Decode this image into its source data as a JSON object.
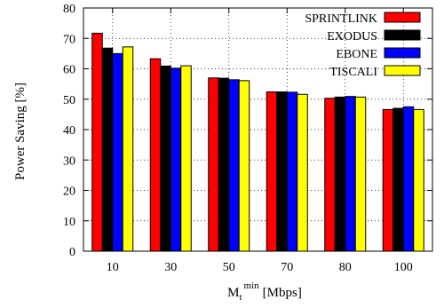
{
  "chart_data": {
    "type": "bar",
    "categories": [
      "10",
      "30",
      "50",
      "70",
      "80",
      "100"
    ],
    "series": [
      {
        "name": "SPRINTLINK",
        "color": "#ff0000",
        "values": [
          71.7,
          63.3,
          57.0,
          52.4,
          50.3,
          46.6
        ]
      },
      {
        "name": "EXODUS",
        "color": "#000000",
        "values": [
          66.8,
          60.9,
          56.9,
          52.4,
          50.7,
          47.0
        ]
      },
      {
        "name": "EBONE",
        "color": "#0000ff",
        "values": [
          65.0,
          60.2,
          56.4,
          52.3,
          50.9,
          47.5
        ]
      },
      {
        "name": "TISCALI",
        "color": "#ffff00",
        "values": [
          67.2,
          61.0,
          56.1,
          51.6,
          50.7,
          46.6
        ]
      }
    ],
    "ylabel": "Power Saving [%]",
    "xlabel_main": "M",
    "xlabel_sub": "t",
    "xlabel_sup": "min",
    "xlabel_unit": "[Mbps]",
    "ylim": [
      0,
      80
    ],
    "yticks": [
      "0",
      "10",
      "20",
      "30",
      "40",
      "50",
      "60",
      "70",
      "80"
    ],
    "grid": true,
    "legend_position": "top-right"
  }
}
